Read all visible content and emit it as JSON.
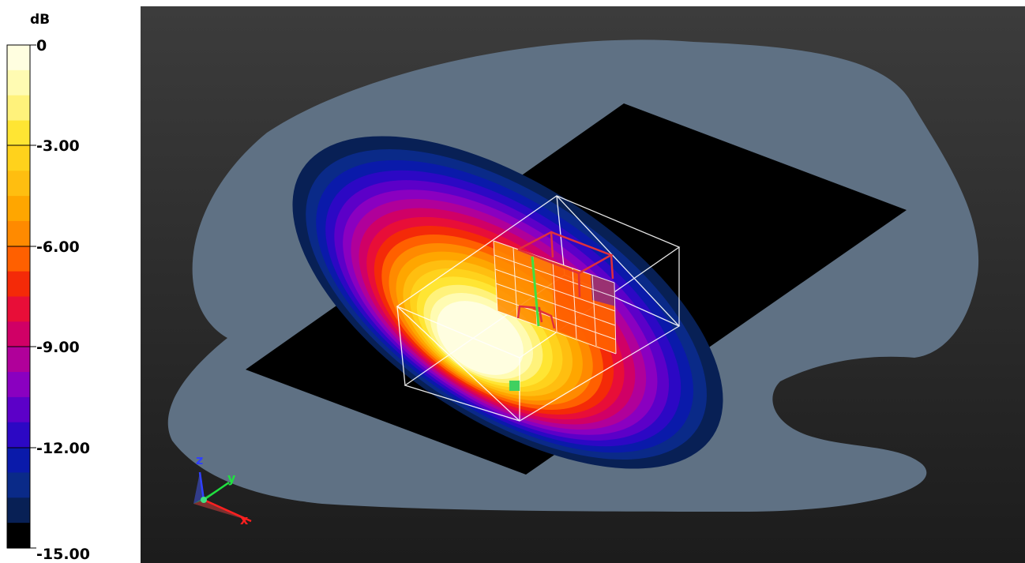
{
  "colorbar": {
    "unit_label": "dB",
    "ticks": [
      "0",
      "-3.00",
      "-6.00",
      "-9.00",
      "-12.00",
      "-15.00"
    ],
    "tick_values": [
      0,
      -3,
      -6,
      -9,
      -12,
      -15
    ],
    "range": [
      -15,
      0
    ],
    "bands": [
      "#fffee0",
      "#fffbb2",
      "#fff27b",
      "#ffe533",
      "#ffd21c",
      "#ffbe10",
      "#ffa600",
      "#ff8a00",
      "#ff6000",
      "#f42a08",
      "#e80e38",
      "#d00066",
      "#b0009a",
      "#8a00c0",
      "#5c00c8",
      "#2c08c4",
      "#0a1aaa",
      "#0a2a88",
      "#082055",
      "#000000"
    ]
  },
  "viewport": {
    "background_top": "#3c3c3c",
    "background_bottom": "#1c1c1c",
    "ground_plane_color": "#000000",
    "far_field_color": "#5f7184",
    "axes": {
      "x_label": "x",
      "y_label": "y",
      "z_label": "z",
      "x_color": "#ff2020",
      "y_color": "#20e040",
      "z_color": "#3040ff"
    }
  }
}
